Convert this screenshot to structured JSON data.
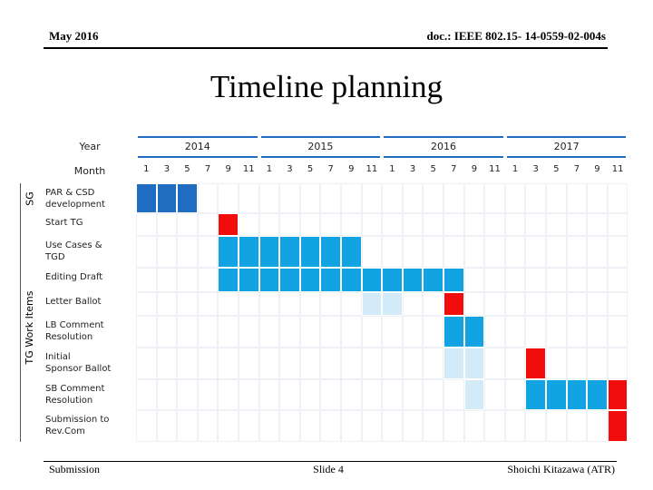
{
  "header": {
    "date": "May 2016",
    "doc": "doc.: IEEE 802.15- 14-0559-02-004s"
  },
  "title": "Timeline planning",
  "table": {
    "year_label": "Year",
    "month_label": "Month",
    "years": [
      2014,
      2015,
      2016,
      2017
    ],
    "months": [
      1,
      3,
      5,
      7,
      9,
      11
    ],
    "palette": {
      "dark": "#1f6dc0",
      "mid": "#12a3e3",
      "light": "#d3ebf9",
      "red": "#f20d0d"
    },
    "groups": [
      {
        "label": "SG",
        "rows": [
          {
            "label": "PAR & CSD\ndevelopment",
            "bars": [
              {
                "start": 0,
                "end": 2,
                "fill": "dark"
              }
            ]
          }
        ]
      },
      {
        "label": "TG Work Items",
        "rows": [
          {
            "label": "Start TG",
            "bars": [
              {
                "start": 4,
                "end": 4,
                "fill": "red"
              }
            ]
          },
          {
            "label": "Use Cases &\nTGD",
            "bars": [
              {
                "start": 4,
                "end": 10,
                "fill": "mid"
              }
            ]
          },
          {
            "label": "Editing Draft",
            "bars": [
              {
                "start": 4,
                "end": 15,
                "fill": "mid"
              }
            ]
          },
          {
            "label": "Letter Ballot",
            "bars": [
              {
                "start": 11,
                "end": 12,
                "fill": "light"
              },
              {
                "start": 15,
                "end": 15,
                "fill": "red"
              }
            ]
          },
          {
            "label": "LB Comment\nResolution",
            "bars": [
              {
                "start": 15,
                "end": 16,
                "fill": "mid"
              }
            ]
          },
          {
            "label": "Initial\nSponsor Ballot",
            "bars": [
              {
                "start": 15,
                "end": 16,
                "fill": "light"
              },
              {
                "start": 19,
                "end": 19,
                "fill": "red"
              }
            ]
          },
          {
            "label": "SB Comment\nResolution",
            "bars": [
              {
                "start": 16,
                "end": 16,
                "fill": "light"
              },
              {
                "start": 19,
                "end": 22,
                "fill": "mid"
              },
              {
                "start": 23,
                "end": 23,
                "fill": "red"
              }
            ]
          },
          {
            "label": "Submission to\nRev.Com",
            "bars": [
              {
                "start": 23,
                "end": 23,
                "fill": "red"
              }
            ]
          }
        ]
      }
    ]
  },
  "footer": {
    "left": "Submission",
    "center": "Slide 4",
    "right": "Shoichi Kitazawa (ATR)"
  }
}
